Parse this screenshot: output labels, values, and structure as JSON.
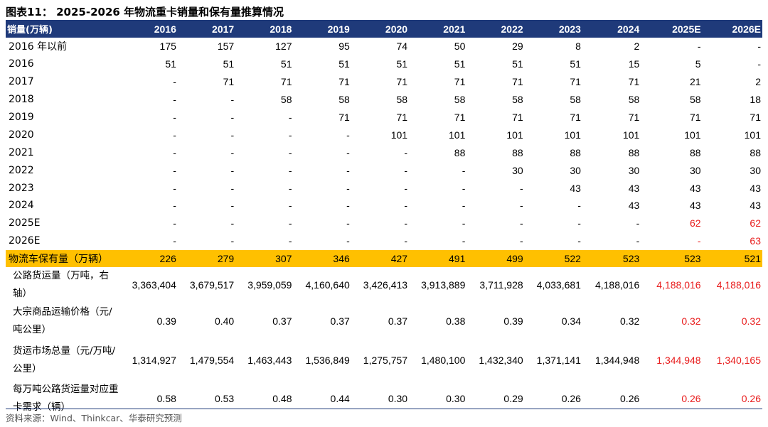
{
  "title": "图表11：  2025-2026 年物流重卡销量和保有量推算情况",
  "header": [
    "销量(万辆)",
    "2016",
    "2017",
    "2018",
    "2019",
    "2020",
    "2021",
    "2022",
    "2023",
    "2024",
    "2025E",
    "2026E"
  ],
  "sales_rows": [
    {
      "label": "2016 年以前",
      "values": [
        "175",
        "157",
        "127",
        "95",
        "74",
        "50",
        "29",
        "8",
        "2",
        "-",
        "-"
      ],
      "red": []
    },
    {
      "label": "2016",
      "values": [
        "51",
        "51",
        "51",
        "51",
        "51",
        "51",
        "51",
        "51",
        "15",
        "5",
        "-"
      ],
      "red": []
    },
    {
      "label": "2017",
      "values": [
        "-",
        "71",
        "71",
        "71",
        "71",
        "71",
        "71",
        "71",
        "71",
        "21",
        "2"
      ],
      "red": []
    },
    {
      "label": "2018",
      "values": [
        "-",
        "-",
        "58",
        "58",
        "58",
        "58",
        "58",
        "58",
        "58",
        "58",
        "18"
      ],
      "red": []
    },
    {
      "label": "2019",
      "values": [
        "-",
        "-",
        "-",
        "71",
        "71",
        "71",
        "71",
        "71",
        "71",
        "71",
        "71"
      ],
      "red": []
    },
    {
      "label": "2020",
      "values": [
        "-",
        "-",
        "-",
        "-",
        "101",
        "101",
        "101",
        "101",
        "101",
        "101",
        "101"
      ],
      "red": []
    },
    {
      "label": "2021",
      "values": [
        "-",
        "-",
        "-",
        "-",
        "-",
        "88",
        "88",
        "88",
        "88",
        "88",
        "88"
      ],
      "red": []
    },
    {
      "label": "2022",
      "values": [
        "-",
        "-",
        "-",
        "-",
        "-",
        "-",
        "30",
        "30",
        "30",
        "30",
        "30"
      ],
      "red": []
    },
    {
      "label": "2023",
      "values": [
        "-",
        "-",
        "-",
        "-",
        "-",
        "-",
        "-",
        "43",
        "43",
        "43",
        "43"
      ],
      "red": []
    },
    {
      "label": "2024",
      "values": [
        "-",
        "-",
        "-",
        "-",
        "-",
        "-",
        "-",
        "-",
        "43",
        "43",
        "43"
      ],
      "red": []
    },
    {
      "label": "2025E",
      "values": [
        "-",
        "-",
        "-",
        "-",
        "-",
        "-",
        "-",
        "-",
        "-",
        "62",
        "62"
      ],
      "red": [
        9,
        10
      ]
    },
    {
      "label": "2026E",
      "values": [
        "-",
        "-",
        "-",
        "-",
        "-",
        "-",
        "-",
        "-",
        "-",
        "-",
        "63"
      ],
      "red": [
        9,
        10
      ]
    }
  ],
  "total_row": {
    "label": "物流车保有量（万辆）",
    "values": [
      "226",
      "279",
      "307",
      "346",
      "427",
      "491",
      "499",
      "522",
      "523",
      "523",
      "521"
    ]
  },
  "metric_rows": [
    {
      "label": "公路货运量（万吨，右轴）",
      "values": [
        "3,363,404",
        "3,679,517",
        "3,959,059",
        "4,160,640",
        "3,426,413",
        "3,913,889",
        "3,711,928",
        "4,033,681",
        "4,188,016",
        "4,188,016",
        "4,188,016"
      ],
      "red": [
        9,
        10
      ]
    },
    {
      "label": "大宗商品运输价格（元/吨公里）",
      "values": [
        "0.39",
        "0.40",
        "0.37",
        "0.37",
        "0.37",
        "0.38",
        "0.39",
        "0.34",
        "0.32",
        "0.32",
        "0.32"
      ],
      "red": [
        9,
        10
      ]
    },
    {
      "label": "货运市场总量（元/万吨/公里）",
      "values": [
        "1,314,927",
        "1,479,554",
        "1,463,443",
        "1,536,849",
        "1,275,757",
        "1,480,100",
        "1,432,340",
        "1,371,141",
        "1,344,948",
        "1,344,948",
        "1,340,165"
      ],
      "red": [
        9,
        10
      ]
    },
    {
      "label": "每万吨公路货运量对应重卡需求（辆）",
      "values": [
        "0.58",
        "0.53",
        "0.48",
        "0.44",
        "0.30",
        "0.30",
        "0.29",
        "0.26",
        "0.26",
        "0.26",
        "0.26"
      ],
      "red": [
        9,
        10
      ]
    }
  ],
  "source": "资料来源：Wind、Thinkcar、华泰研究预测",
  "colors": {
    "header_bg": "#1f3a7a",
    "total_bg": "#ffc000",
    "forecast_red": "#e81c1c"
  }
}
